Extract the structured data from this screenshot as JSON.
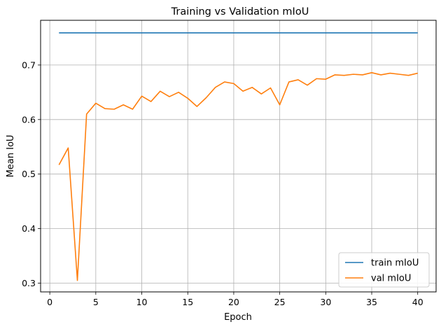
{
  "chart_data": {
    "type": "line",
    "title": "Training vs Validation mIoU",
    "xlabel": "Epoch",
    "ylabel": "Mean IoU",
    "xlim": [
      -1,
      42
    ],
    "ylim": [
      0.284,
      0.782
    ],
    "xticks": [
      0,
      5,
      10,
      15,
      20,
      25,
      30,
      35,
      40
    ],
    "yticks": [
      0.3,
      0.4,
      0.5,
      0.6,
      0.7
    ],
    "ytick_labels": [
      "0.3",
      "0.4",
      "0.5",
      "0.6",
      "0.7"
    ],
    "grid": true,
    "legend_position": "lower-right",
    "x": [
      1,
      2,
      3,
      4,
      5,
      6,
      7,
      8,
      9,
      10,
      11,
      12,
      13,
      14,
      15,
      16,
      17,
      18,
      19,
      20,
      21,
      22,
      23,
      24,
      25,
      26,
      27,
      28,
      29,
      30,
      31,
      32,
      33,
      34,
      35,
      36,
      37,
      38,
      39,
      40
    ],
    "series": [
      {
        "name": "train mIoU",
        "color": "#1f77b4",
        "values": [
          0.759,
          0.759,
          0.759,
          0.759,
          0.759,
          0.759,
          0.759,
          0.759,
          0.759,
          0.759,
          0.759,
          0.759,
          0.759,
          0.759,
          0.759,
          0.759,
          0.759,
          0.759,
          0.759,
          0.759,
          0.759,
          0.759,
          0.759,
          0.759,
          0.759,
          0.759,
          0.759,
          0.759,
          0.759,
          0.759,
          0.759,
          0.759,
          0.759,
          0.759,
          0.759,
          0.759,
          0.759,
          0.759,
          0.759,
          0.759
        ]
      },
      {
        "name": "val mIoU",
        "color": "#ff7f0e",
        "values": [
          0.517,
          0.548,
          0.305,
          0.61,
          0.63,
          0.62,
          0.619,
          0.627,
          0.619,
          0.643,
          0.633,
          0.652,
          0.642,
          0.65,
          0.639,
          0.624,
          0.64,
          0.659,
          0.669,
          0.666,
          0.652,
          0.659,
          0.647,
          0.658,
          0.627,
          0.669,
          0.673,
          0.663,
          0.675,
          0.674,
          0.682,
          0.681,
          0.683,
          0.682,
          0.686,
          0.682,
          0.685,
          0.683,
          0.681,
          0.685
        ]
      }
    ]
  }
}
